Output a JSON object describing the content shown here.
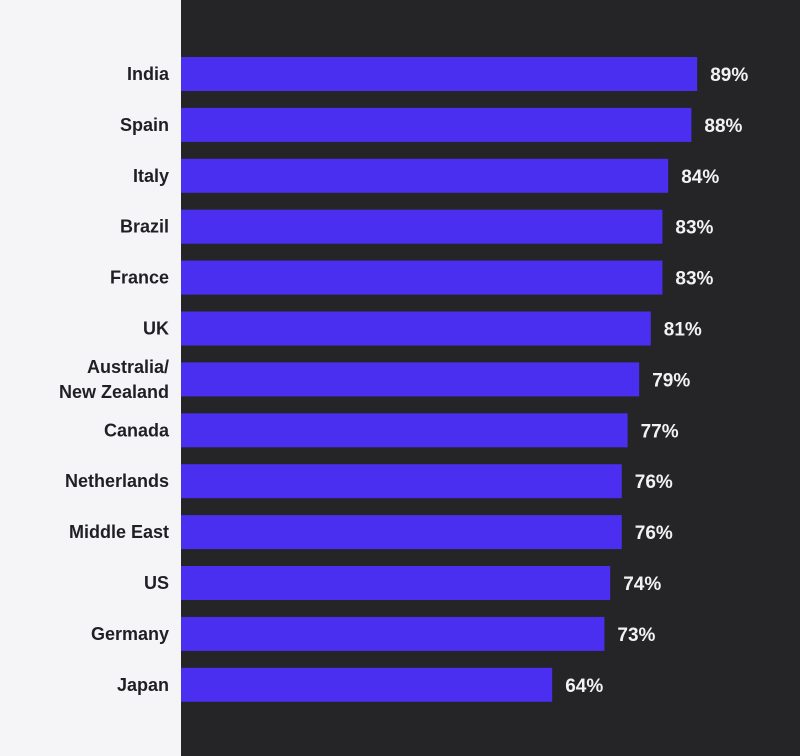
{
  "colors": {
    "left_background": "#f5f5f8",
    "right_background": "#252427",
    "bar": "#4a2ff0",
    "category_text": "#1f1f24",
    "value_text": "#f2f2f2"
  },
  "chart_data": {
    "type": "bar",
    "orientation": "horizontal",
    "title": "",
    "xlabel": "",
    "ylabel": "",
    "value_suffix": "%",
    "categories": [
      "India",
      "Spain",
      "Italy",
      "Brazil",
      "France",
      "UK",
      "Australia/ New Zealand",
      "Canada",
      "Netherlands",
      "Middle East",
      "US",
      "Germany",
      "Japan"
    ],
    "values": [
      89,
      88,
      84,
      83,
      83,
      81,
      79,
      77,
      76,
      76,
      74,
      73,
      64
    ],
    "value_labels": [
      "89%",
      "88%",
      "84%",
      "83%",
      "83%",
      "81%",
      "79%",
      "77%",
      "76%",
      "76%",
      "74%",
      "73%",
      "64%"
    ],
    "xlim": [
      0,
      100
    ],
    "grid": false,
    "legend": "none"
  }
}
